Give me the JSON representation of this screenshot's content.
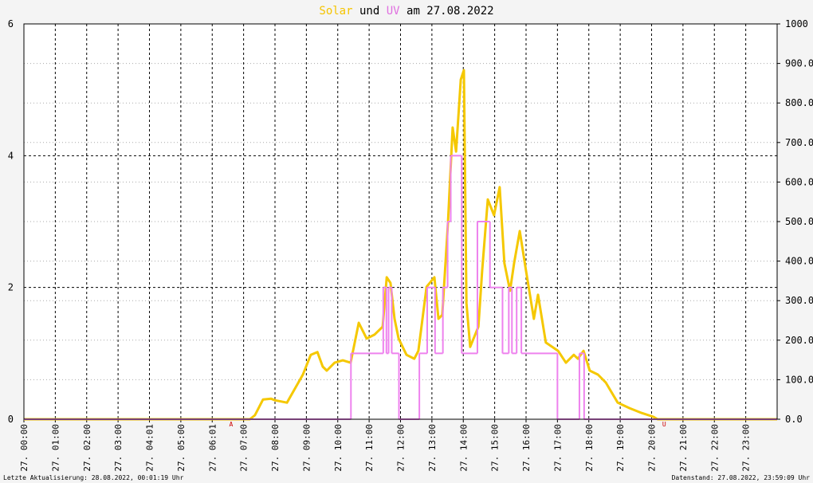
{
  "chart_data": {
    "type": "line",
    "title_parts": [
      {
        "text": "Solar",
        "color": "#f5c400"
      },
      {
        "text": "und",
        "color": "#000000"
      },
      {
        "text": "UV",
        "color": "#e070e0"
      },
      {
        "text": "am 27.08.2022",
        "color": "#000000"
      }
    ],
    "xlim": [
      0,
      24
    ],
    "xticks": [
      {
        "value": 0,
        "label": "27. 00:00"
      },
      {
        "value": 1,
        "label": "27. 01:00"
      },
      {
        "value": 2,
        "label": "27. 02:00"
      },
      {
        "value": 3,
        "label": "27. 03:00"
      },
      {
        "value": 4,
        "label": "27. 04:01"
      },
      {
        "value": 5,
        "label": "27. 05:00"
      },
      {
        "value": 6,
        "label": "27. 06:01"
      },
      {
        "value": 7,
        "label": "27. 07:00"
      },
      {
        "value": 8,
        "label": "27. 08:00"
      },
      {
        "value": 9,
        "label": "27. 09:00"
      },
      {
        "value": 10,
        "label": "27. 10:00"
      },
      {
        "value": 11,
        "label": "27. 11:00"
      },
      {
        "value": 12,
        "label": "27. 12:00"
      },
      {
        "value": 13,
        "label": "27. 13:00"
      },
      {
        "value": 14,
        "label": "27. 14:00"
      },
      {
        "value": 15,
        "label": "27. 15:00"
      },
      {
        "value": 16,
        "label": "27. 16:00"
      },
      {
        "value": 17,
        "label": "27. 17:00"
      },
      {
        "value": 18,
        "label": "27. 18:00"
      },
      {
        "value": 19,
        "label": "27. 19:00"
      },
      {
        "value": 20,
        "label": "27. 20:00"
      },
      {
        "value": 21,
        "label": "27. 21:00"
      },
      {
        "value": 22,
        "label": "27. 22:00"
      },
      {
        "value": 23,
        "label": "27. 23:00"
      }
    ],
    "ylim": [
      0,
      6
    ],
    "yticks": [
      0,
      2,
      4,
      6
    ],
    "y2lim": [
      0,
      1000
    ],
    "y2ticks": [
      {
        "value": 0,
        "label": "0.0"
      },
      {
        "value": 100,
        "label": "100.0"
      },
      {
        "value": 200,
        "label": "200.0"
      },
      {
        "value": 300,
        "label": "300.0"
      },
      {
        "value": 400,
        "label": "400.0"
      },
      {
        "value": 500,
        "label": "500.0"
      },
      {
        "value": 600,
        "label": "600.0"
      },
      {
        "value": 700,
        "label": "700.0"
      },
      {
        "value": 800,
        "label": "800.0"
      },
      {
        "value": 900,
        "label": "900.0"
      },
      1000
    ],
    "grid": true,
    "series": [
      {
        "color": "#f5c800",
        "axis": "y2",
        "x": [
          0,
          7.2,
          7.36,
          7.62,
          7.87,
          8.0,
          8.38,
          8.89,
          9.14,
          9.35,
          9.52,
          9.65,
          9.9,
          10.16,
          10.41,
          10.67,
          10.92,
          11.17,
          11.43,
          11.56,
          11.68,
          11.81,
          11.94,
          12.19,
          12.44,
          12.57,
          12.83,
          13.08,
          13.21,
          13.33,
          13.51,
          13.66,
          13.77,
          13.92,
          14.02,
          14.1,
          14.22,
          14.48,
          14.6,
          14.78,
          14.98,
          15.16,
          15.31,
          15.49,
          15.62,
          15.8,
          16.0,
          16.25,
          16.38,
          16.63,
          17.02,
          17.27,
          17.52,
          17.65,
          17.83,
          18.03,
          18.29,
          18.54,
          18.92,
          19.3,
          19.68,
          20.06,
          20.19,
          24
        ],
        "values": [
          0,
          0,
          10,
          50,
          52,
          48,
          42,
          113,
          163,
          170,
          133,
          123,
          143,
          149,
          143,
          244,
          204,
          214,
          234,
          359,
          345,
          254,
          204,
          163,
          153,
          173,
          335,
          359,
          254,
          264,
          496,
          738,
          677,
          859,
          883,
          294,
          183,
          234,
          375,
          556,
          516,
          587,
          395,
          325,
          395,
          476,
          375,
          254,
          315,
          194,
          173,
          143,
          163,
          153,
          173,
          123,
          113,
          93,
          42,
          28,
          16,
          6,
          0,
          0
        ]
      },
      {
        "color": "#ee82ee",
        "step": true,
        "x": [
          0,
          10.42,
          11.45,
          11.55,
          11.62,
          11.72,
          11.95,
          12.6,
          12.85,
          13.1,
          13.35,
          13.5,
          13.6,
          13.95,
          14.45,
          14.85,
          15.25,
          15.45,
          15.55,
          15.7,
          15.85,
          17.0,
          17.7,
          17.85,
          24
        ],
        "values": [
          0,
          1,
          2,
          1,
          2,
          1,
          0,
          1,
          2,
          1,
          2,
          3,
          4,
          1,
          3,
          2,
          1,
          2,
          1,
          2,
          1,
          0,
          1,
          0,
          0
        ]
      }
    ],
    "annotations": [
      {
        "text": "A",
        "x": 6.6,
        "color": "#cc0000"
      },
      {
        "text": "U",
        "x": 20.4,
        "color": "#cc0000"
      }
    ],
    "footer_left": "Letzte Aktualisierung: 28.08.2022, 00:01:19 Uhr",
    "footer_right": "Datenstand: 27.08.2022, 23:59:09 Uhr"
  }
}
